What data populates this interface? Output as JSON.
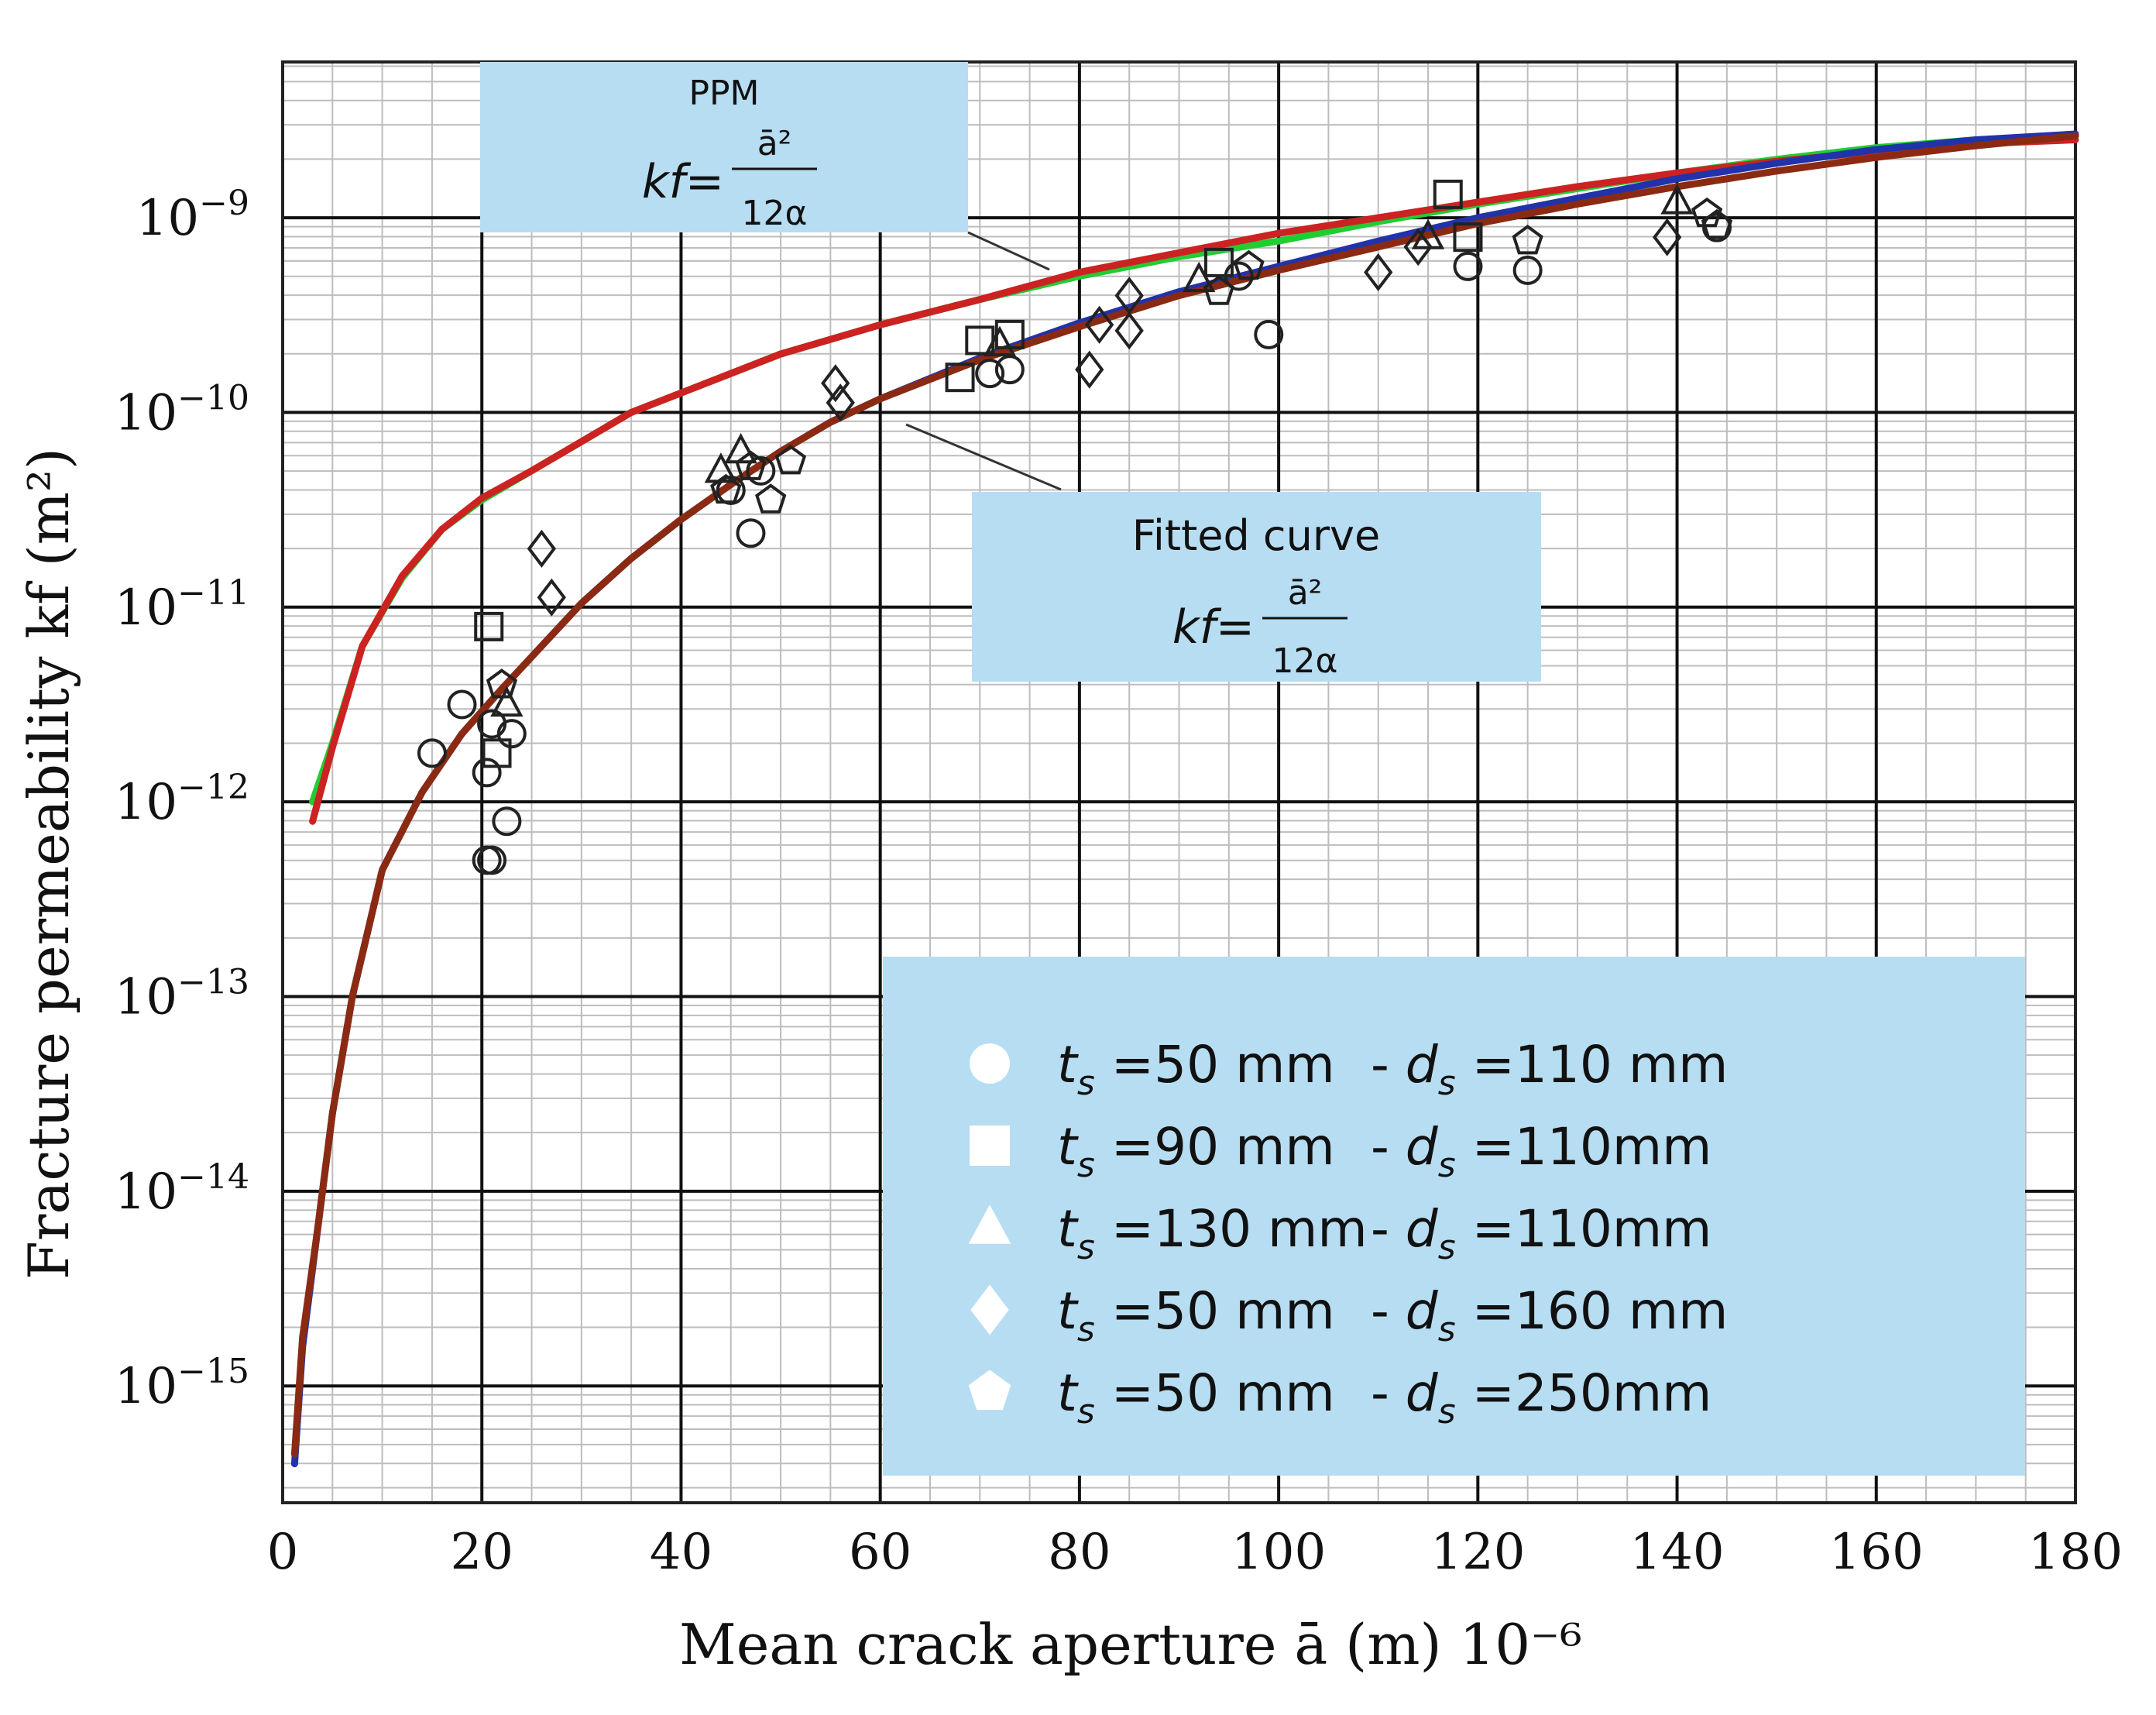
{
  "chart_data": {
    "type": "scatter",
    "xlabel": "Mean crack aperture ā (m) 10⁻⁶",
    "ylabel": "Fracture permeability kf (m²)",
    "xlim": [
      0,
      180
    ],
    "ylim_log10": [
      -15.6,
      -8.2
    ],
    "x_ticks": [
      "0",
      "20",
      "40",
      "60",
      "80",
      "100",
      "120",
      "140",
      "160",
      "180"
    ],
    "x_tick_values": [
      0,
      20,
      40,
      60,
      80,
      100,
      120,
      140,
      160,
      180
    ],
    "y_ticks": [
      {
        "exp": -9,
        "base": "10",
        "sup": "−9"
      },
      {
        "exp": -10,
        "base": "10",
        "sup": "−10"
      },
      {
        "exp": -11,
        "base": "10",
        "sup": "−11"
      },
      {
        "exp": -12,
        "base": "10",
        "sup": "−12"
      },
      {
        "exp": -13,
        "base": "10",
        "sup": "−13"
      },
      {
        "exp": -14,
        "base": "10",
        "sup": "−14"
      },
      {
        "exp": -15,
        "base": "10",
        "sup": "−15"
      }
    ],
    "annotations": {
      "ppm": {
        "title": "PPM",
        "formula_lhs": "kf=",
        "numerator": "ā²",
        "denominator": "12α"
      },
      "fitted": {
        "title": "Fitted curve",
        "formula_lhs": "kf=",
        "numerator": "ā²",
        "denominator": "12α"
      }
    },
    "lines": [
      {
        "name": "PPM (green)",
        "color": "#22cc33",
        "x": [
          3,
          5,
          8,
          12,
          16,
          20,
          25,
          30,
          35,
          40,
          50,
          60,
          70,
          80,
          90,
          100,
          110,
          120,
          130,
          140,
          150,
          160,
          170,
          180
        ],
        "y_log10": [
          -12.0,
          -11.7,
          -11.2,
          -10.85,
          -10.6,
          -10.45,
          -10.3,
          -10.15,
          -10.0,
          -9.9,
          -9.7,
          -9.55,
          -9.42,
          -9.3,
          -9.2,
          -9.12,
          -9.02,
          -8.93,
          -8.85,
          -8.77,
          -8.7,
          -8.64,
          -8.6,
          -8.58
        ]
      },
      {
        "name": "PPM (red)",
        "color": "#cc2222",
        "x": [
          3,
          5,
          8,
          12,
          16,
          20,
          25,
          30,
          35,
          40,
          50,
          60,
          70,
          80,
          90,
          100,
          110,
          120,
          130,
          140,
          150,
          160,
          170,
          180
        ],
        "y_log10": [
          -12.1,
          -11.72,
          -11.2,
          -10.84,
          -10.6,
          -10.44,
          -10.3,
          -10.15,
          -10.0,
          -9.9,
          -9.7,
          -9.55,
          -9.42,
          -9.28,
          -9.18,
          -9.08,
          -9.0,
          -8.92,
          -8.84,
          -8.77,
          -8.71,
          -8.66,
          -8.62,
          -8.6
        ]
      },
      {
        "name": "Fitted (blue)",
        "color": "#2233aa",
        "x": [
          1.2,
          2,
          3.5,
          5,
          7,
          10,
          14,
          18,
          22,
          26,
          30,
          35,
          40,
          45,
          50,
          55,
          60,
          70,
          80,
          90,
          100,
          110,
          120,
          130,
          140,
          150,
          160,
          170,
          180
        ],
        "y_log10": [
          -15.4,
          -14.8,
          -14.2,
          -13.6,
          -13.0,
          -12.35,
          -11.95,
          -11.65,
          -11.42,
          -11.2,
          -10.98,
          -10.75,
          -10.55,
          -10.37,
          -10.2,
          -10.05,
          -9.93,
          -9.72,
          -9.54,
          -9.38,
          -9.25,
          -9.12,
          -9.0,
          -8.9,
          -8.8,
          -8.72,
          -8.65,
          -8.6,
          -8.57
        ]
      },
      {
        "name": "Fitted (dark red)",
        "color": "#8b2a12",
        "x": [
          1.2,
          2,
          3.5,
          5,
          7,
          10,
          14,
          18,
          22,
          26,
          30,
          35,
          40,
          45,
          50,
          55,
          60,
          70,
          80,
          90,
          100,
          110,
          120,
          130,
          140,
          150,
          160,
          170,
          180
        ],
        "y_log10": [
          -15.35,
          -14.75,
          -14.2,
          -13.6,
          -13.0,
          -12.35,
          -11.95,
          -11.65,
          -11.42,
          -11.2,
          -10.98,
          -10.75,
          -10.55,
          -10.37,
          -10.2,
          -10.05,
          -9.93,
          -9.73,
          -9.56,
          -9.4,
          -9.27,
          -9.15,
          -9.03,
          -8.93,
          -8.84,
          -8.76,
          -8.69,
          -8.63,
          -8.58
        ]
      }
    ],
    "series": [
      {
        "name": "ts=50 mm - ds=110 mm",
        "marker": "circle",
        "points": [
          [
            15,
            -11.75
          ],
          [
            18,
            -11.5
          ],
          [
            20.5,
            -11.85
          ],
          [
            21,
            -12.3
          ],
          [
            22.5,
            -12.1
          ],
          [
            21,
            -11.6
          ],
          [
            23,
            -11.65
          ],
          [
            20.5,
            -12.3
          ],
          [
            45,
            -10.4
          ],
          [
            47,
            -10.62
          ],
          [
            48,
            -10.3
          ],
          [
            71,
            -9.8
          ],
          [
            73,
            -9.78
          ],
          [
            96,
            -9.3
          ],
          [
            99,
            -9.6
          ],
          [
            119,
            -9.25
          ],
          [
            125,
            -9.27
          ],
          [
            144,
            -9.05
          ]
        ]
      },
      {
        "name": "ts=90 mm - ds=110mm",
        "marker": "square",
        "points": [
          [
            20.7,
            -11.1
          ],
          [
            21.5,
            -11.75
          ],
          [
            68,
            -9.82
          ],
          [
            70,
            -9.63
          ],
          [
            73,
            -9.6
          ],
          [
            94,
            -9.23
          ],
          [
            117,
            -8.88
          ],
          [
            119,
            -9.1
          ]
        ]
      },
      {
        "name": "ts=130 mm - ds=110mm",
        "marker": "triangle",
        "points": [
          [
            22.5,
            -11.5
          ],
          [
            44,
            -10.3
          ],
          [
            46,
            -10.2
          ],
          [
            72,
            -9.65
          ],
          [
            92,
            -9.32
          ],
          [
            115,
            -9.1
          ],
          [
            140,
            -8.92
          ]
        ]
      },
      {
        "name": "ts=50 mm - ds=160 mm",
        "marker": "diamond",
        "points": [
          [
            26,
            -10.7
          ],
          [
            27,
            -10.95
          ],
          [
            55.5,
            -9.85
          ],
          [
            56,
            -9.95
          ],
          [
            81,
            -9.78
          ],
          [
            82,
            -9.55
          ],
          [
            85,
            -9.4
          ],
          [
            85,
            -9.58
          ],
          [
            110,
            -9.28
          ],
          [
            114,
            -9.15
          ],
          [
            139,
            -9.1
          ]
        ]
      },
      {
        "name": "ts=50 mm - ds=250mm",
        "marker": "pentagon",
        "points": [
          [
            22,
            -11.4
          ],
          [
            44.5,
            -10.4
          ],
          [
            47,
            -10.28
          ],
          [
            49,
            -10.45
          ],
          [
            51,
            -10.25
          ],
          [
            94,
            -9.38
          ],
          [
            97,
            -9.25
          ],
          [
            125,
            -9.12
          ],
          [
            143,
            -8.98
          ],
          [
            144,
            -9.04
          ]
        ]
      }
    ],
    "legend": {
      "entries": [
        {
          "marker": "circle",
          "t_val": "=50 mm",
          "d_val": "=110 mm"
        },
        {
          "marker": "square",
          "t_val": "=90 mm",
          "d_val": "=110mm"
        },
        {
          "marker": "triangle",
          "t_val": "=130 mm",
          "d_val": "=110mm"
        },
        {
          "marker": "diamond",
          "t_val": "=50 mm",
          "d_val": "=160 mm"
        },
        {
          "marker": "pentagon",
          "t_val": "=50 mm",
          "d_val": "=250mm"
        }
      ],
      "t_symbol": "t",
      "t_sub": "s",
      "d_symbol": "d",
      "d_sub": "s",
      "separator": "-",
      "placement": "bottom-right"
    },
    "colors": {
      "annotation_box": "#b7ddf2",
      "grid_major": "#111111",
      "grid_minor": "#bdbdbd"
    }
  }
}
